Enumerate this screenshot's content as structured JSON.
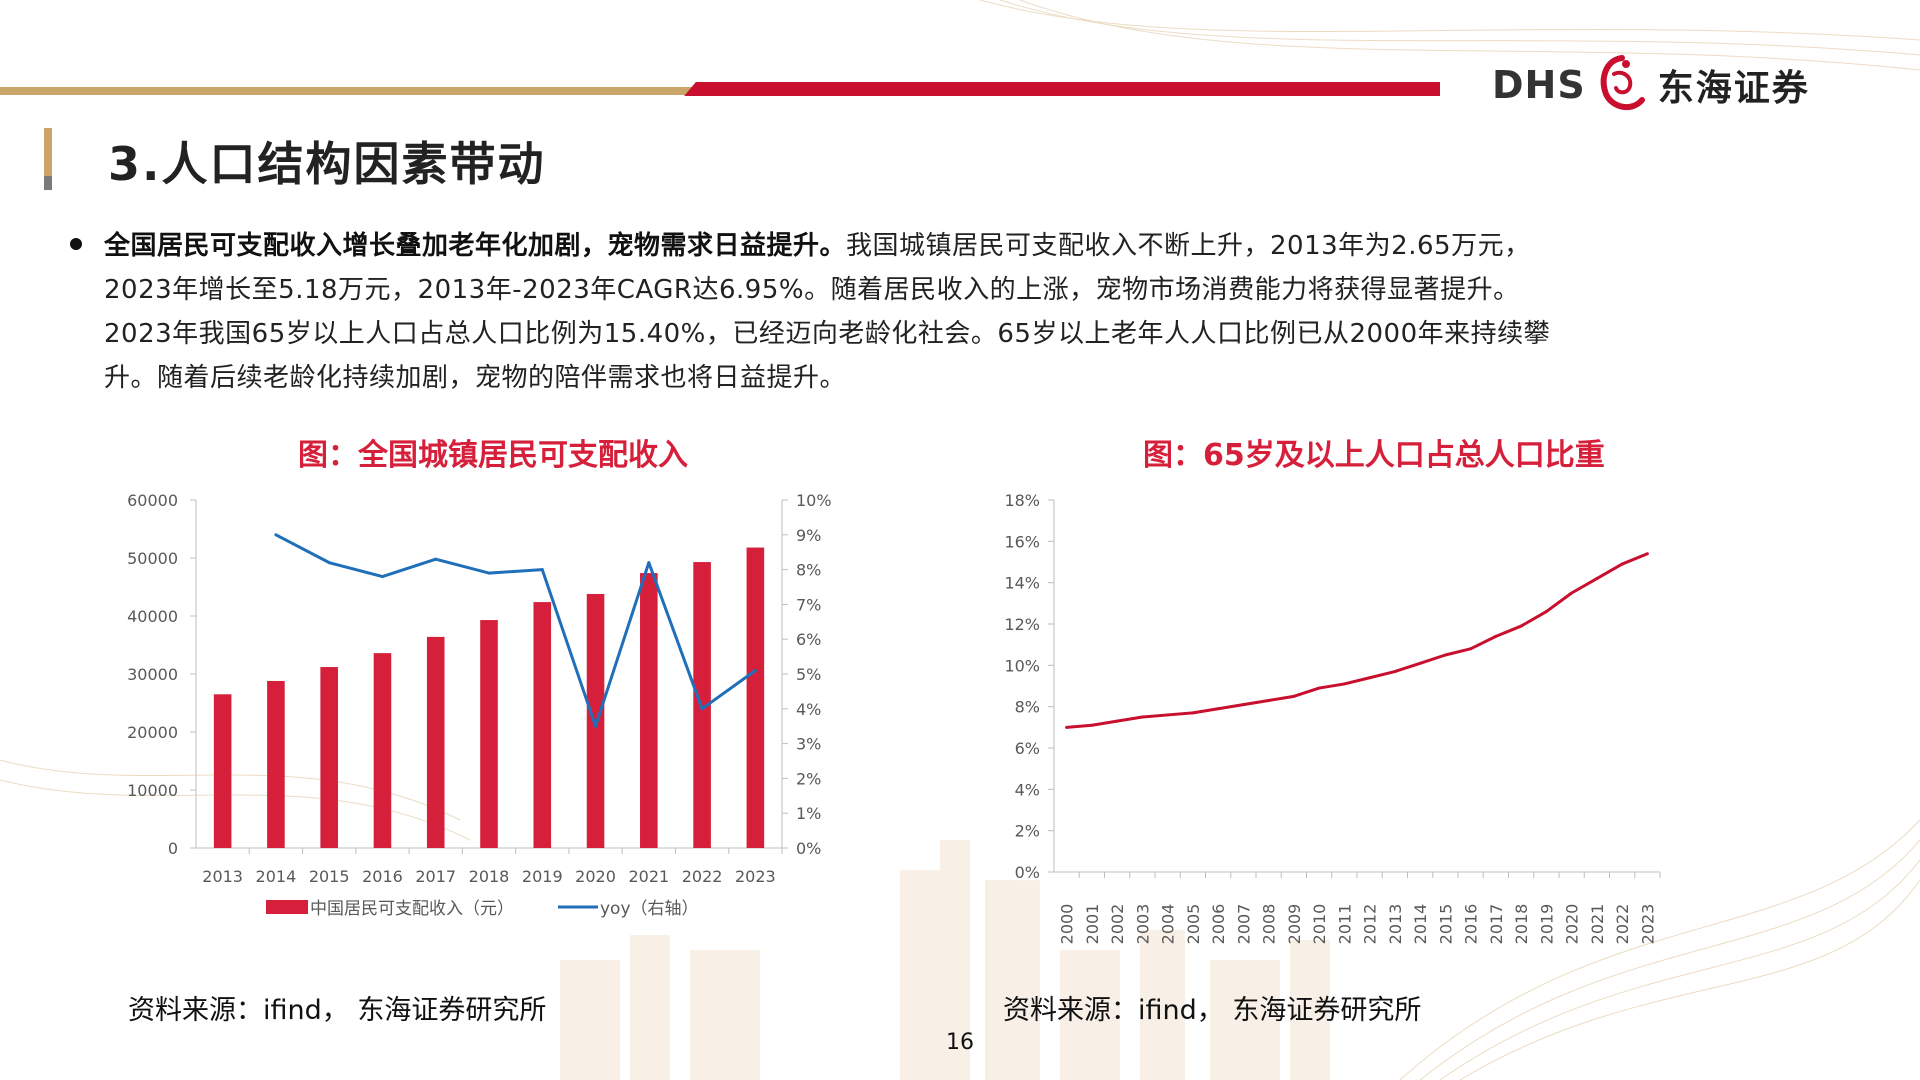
{
  "header": {
    "logo_latin": "DHS",
    "logo_cn": "东海证券",
    "brand_red": "#c8102e",
    "brand_gold": "#c9a56a"
  },
  "page_title": "3.人口结构因素带动",
  "bullet": {
    "bold": "全国居民可支配收入增长叠加老年化加剧，宠物需求日益提升。",
    "line1_rest": "我国城镇居民可支配收入不断上升，2013年为2.65万元，",
    "line2": "2023年增长至5.18万元，2013年-2023年CAGR达6.95%。随着居民收入的上涨，宠物市场消费能力将获得显著提升。",
    "line3": "2023年我国65岁以上人口占总人口比例为15.40%，已经迈向老龄化社会。65岁以上老年人人口比例已从2000年来持续攀",
    "line4": "升。随着后续老龄化持续加剧，宠物的陪伴需求也将日益提升。"
  },
  "chart_data": [
    {
      "type": "bar",
      "title": "图：全国城镇居民可支配收入",
      "categories": [
        "2013",
        "2014",
        "2015",
        "2016",
        "2017",
        "2018",
        "2019",
        "2020",
        "2021",
        "2022",
        "2023"
      ],
      "series": [
        {
          "name": "中国居民可支配收入（元）",
          "axis": "left",
          "type": "bar",
          "color": "#d61f3a",
          "values": [
            26500,
            28800,
            31200,
            33600,
            36400,
            39300,
            42400,
            43800,
            47400,
            49300,
            51800
          ]
        },
        {
          "name": "yoy（右轴）",
          "axis": "right",
          "type": "line",
          "color": "#1f6fb9",
          "values": [
            null,
            9.0,
            8.2,
            7.8,
            8.3,
            7.9,
            8.0,
            3.5,
            8.2,
            4.0,
            5.1
          ]
        }
      ],
      "ylim_left": [
        0,
        60000
      ],
      "yticks_left": [
        "0",
        "10000",
        "20000",
        "30000",
        "40000",
        "50000",
        "60000"
      ],
      "ylim_right": [
        0,
        10
      ],
      "yticks_right": [
        "0%",
        "1%",
        "2%",
        "3%",
        "4%",
        "5%",
        "6%",
        "7%",
        "8%",
        "9%",
        "10%"
      ],
      "legend": "bottom",
      "grid": false
    },
    {
      "type": "line",
      "title": "图：65岁及以上人口占总人口比重",
      "x": [
        "2000",
        "2001",
        "2002",
        "2003",
        "2004",
        "2005",
        "2006",
        "2007",
        "2008",
        "2009",
        "2010",
        "2011",
        "2012",
        "2013",
        "2014",
        "2015",
        "2016",
        "2017",
        "2018",
        "2019",
        "2020",
        "2021",
        "2022",
        "2023"
      ],
      "series": [
        {
          "color": "#c8102e",
          "values": [
            7.0,
            7.1,
            7.3,
            7.5,
            7.6,
            7.7,
            7.9,
            8.1,
            8.3,
            8.5,
            8.9,
            9.1,
            9.4,
            9.7,
            10.1,
            10.5,
            10.8,
            11.4,
            11.9,
            12.6,
            13.5,
            14.2,
            14.9,
            15.4
          ]
        }
      ],
      "ylim": [
        0,
        18
      ],
      "yticks": [
        "0%",
        "2%",
        "4%",
        "6%",
        "8%",
        "10%",
        "12%",
        "14%",
        "16%",
        "18%"
      ],
      "grid": false
    }
  ],
  "sources": {
    "left": "资料来源：ifind， 东海证券研究所",
    "right": "资料来源：ifind， 东海证券研究所"
  },
  "page_number": "16"
}
